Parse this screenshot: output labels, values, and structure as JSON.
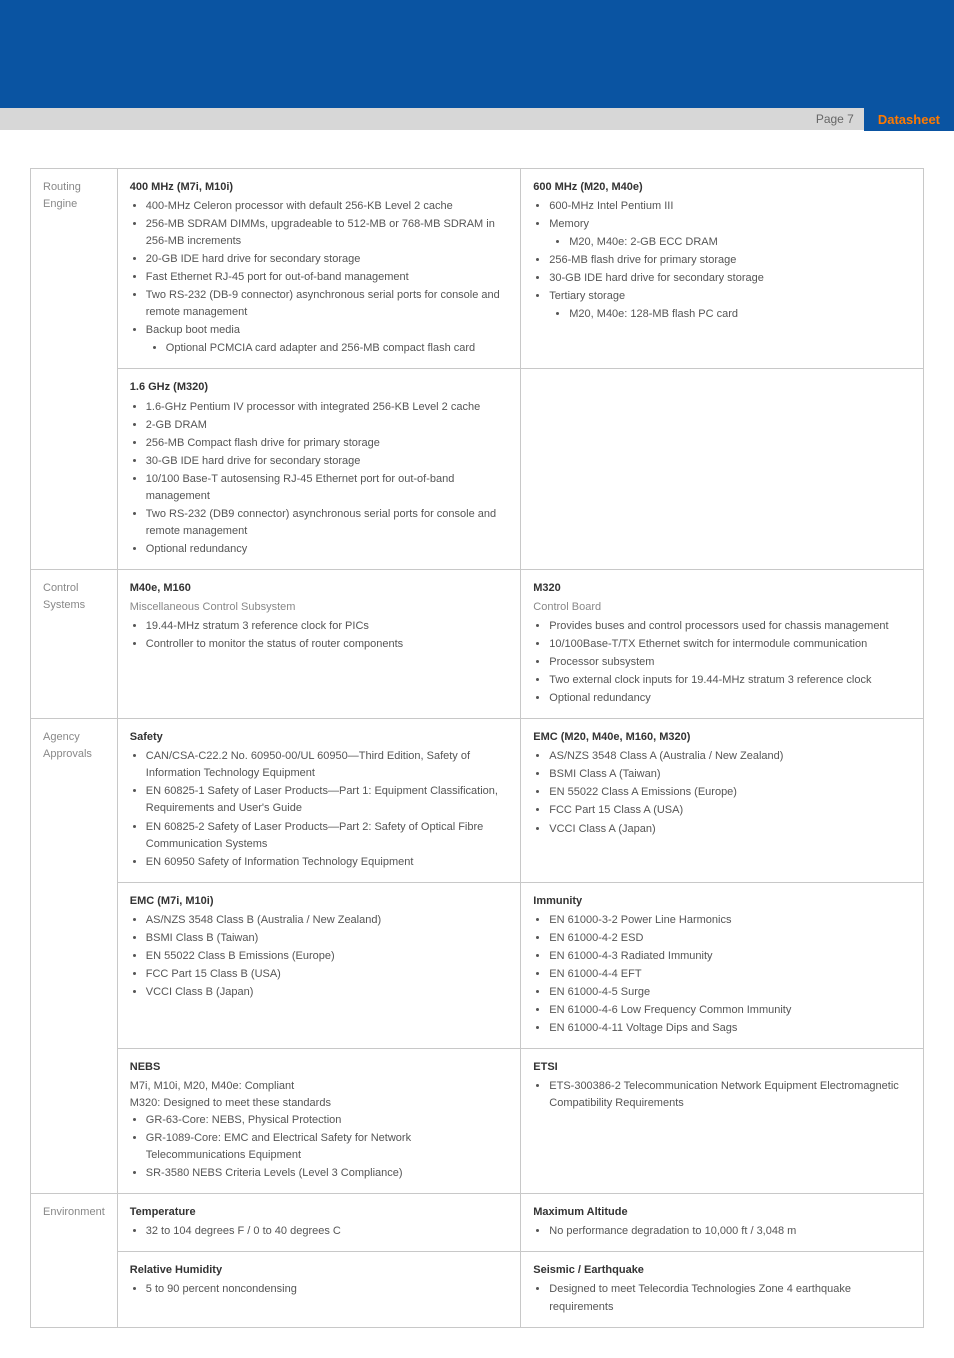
{
  "header": {
    "page_label": "Page 7",
    "datasheet_label": "Datasheet",
    "banner_color": "#0a54a2",
    "subbanner_color": "#d7d7d7",
    "badge_bg": "#0a54a2",
    "badge_fg": "#ff7a00"
  },
  "table": {
    "rows": [
      {
        "label": "Routing Engine",
        "cells": [
          [
            {
              "title": "400 MHz (M7i, M10i)",
              "items": [
                "400-MHz Celeron processor with default 256-KB Level 2 cache",
                "256-MB SDRAM DIMMs, upgradeable to 512-MB or 768-MB SDRAM in 256-MB increments",
                "20-GB IDE hard drive for secondary storage",
                "Fast Ethernet RJ-45 port for out-of-band management",
                "Two RS-232 (DB-9 connector) asynchronous serial ports for console and remote management",
                "Backup boot media",
                {
                  "sub": [
                    "Optional PCMCIA card adapter and 256-MB compact flash card"
                  ]
                }
              ]
            },
            {
              "title": "600 MHz (M20, M40e)",
              "items": [
                "600-MHz Intel Pentium III",
                "Memory",
                {
                  "sub": [
                    "M20, M40e: 2-GB ECC DRAM"
                  ]
                },
                "256-MB flash drive for primary storage",
                "30-GB IDE hard drive for secondary storage",
                "Tertiary storage",
                {
                  "sub": [
                    "M20, M40e: 128-MB flash PC card"
                  ]
                }
              ]
            }
          ],
          [
            {
              "title": "1.6 GHz (M320)",
              "items": [
                "1.6-GHz Pentium IV processor with integrated 256-KB Level 2 cache",
                "2-GB DRAM",
                "256-MB Compact flash drive for primary storage",
                "30-GB IDE hard drive for secondary storage",
                "10/100 Base-T autosensing RJ-45 Ethernet port for out-of-band management",
                "Two RS-232 (DB9 connector) asynchronous serial ports for console and remote management",
                "Optional redundancy"
              ]
            },
            {
              "empty": true
            }
          ]
        ]
      },
      {
        "label": "Control Systems",
        "cells": [
          [
            {
              "title": "M40e, M160",
              "subtitle": "Miscellaneous Control Subsystem",
              "items": [
                "19.44-MHz stratum 3 reference clock for PICs",
                "Controller to monitor the status of router components"
              ]
            },
            {
              "title": "M320",
              "subtitle": "Control Board",
              "items": [
                "Provides buses and control processors used for chassis management",
                "10/100Base-T/TX Ethernet switch for intermodule communication",
                "Processor subsystem",
                "Two external clock inputs for 19.44-MHz stratum 3 reference clock",
                "Optional redundancy"
              ]
            }
          ]
        ]
      },
      {
        "label": "Agency Approvals",
        "cells": [
          [
            {
              "title": "Safety",
              "items": [
                "CAN/CSA-C22.2 No. 60950-00/UL 60950—Third Edition, Safety of Information Technology Equipment",
                "EN 60825-1 Safety of Laser Products—Part 1: Equipment Classification, Requirements and User's Guide",
                "EN 60825-2 Safety of Laser Products—Part 2: Safety of Optical Fibre Communication Systems",
                "EN 60950 Safety of Information Technology Equipment"
              ]
            },
            {
              "title": "EMC (M20, M40e, M160, M320)",
              "items": [
                "AS/NZS 3548 Class A (Australia / New Zealand)",
                "BSMI Class A (Taiwan)",
                "EN 55022 Class A Emissions (Europe)",
                "FCC Part 15 Class A (USA)",
                "VCCI Class A (Japan)"
              ]
            }
          ],
          [
            {
              "title": "EMC (M7i, M10i)",
              "items": [
                "AS/NZS 3548 Class B (Australia / New Zealand)",
                "BSMI Class B (Taiwan)",
                "EN 55022 Class B Emissions (Europe)",
                "FCC Part 15 Class B (USA)",
                "VCCI Class B (Japan)"
              ]
            },
            {
              "title": "Immunity",
              "items": [
                "EN 61000-3-2 Power Line Harmonics",
                "EN 61000-4-2 ESD",
                "EN 61000-4-3 Radiated Immunity",
                "EN 61000-4-4 EFT",
                "EN 61000-4-5 Surge",
                "EN 61000-4-6 Low Frequency Common Immunity",
                "EN 61000-4-11 Voltage Dips and Sags"
              ]
            }
          ],
          [
            {
              "title": "NEBS",
              "plain": [
                "M7i, M10i, M20, M40e: Compliant",
                "M320: Designed to meet these standards"
              ],
              "items": [
                "GR-63-Core: NEBS, Physical Protection",
                "GR-1089-Core: EMC and Electrical Safety for Network Telecommunications Equipment",
                "SR-3580 NEBS Criteria Levels (Level 3 Compliance)"
              ]
            },
            {
              "title": "ETSI",
              "items": [
                "ETS-300386-2 Telecommunication Network Equipment Electromagnetic Compatibility Requirements"
              ]
            }
          ]
        ]
      },
      {
        "label": "Environment",
        "cells": [
          [
            {
              "title": "Temperature",
              "items": [
                "32 to 104 degrees F / 0 to 40 degrees C"
              ]
            },
            {
              "title": "Maximum Altitude",
              "items": [
                "No performance degradation to 10,000 ft / 3,048 m"
              ]
            }
          ],
          [
            {
              "title": "Relative Humidity",
              "items": [
                "5 to 90 percent noncondensing"
              ]
            },
            {
              "title": "Seismic / Earthquake",
              "items": [
                "Designed to meet Telecordia Technologies Zone 4 earthquake requirements"
              ]
            }
          ]
        ]
      }
    ]
  }
}
